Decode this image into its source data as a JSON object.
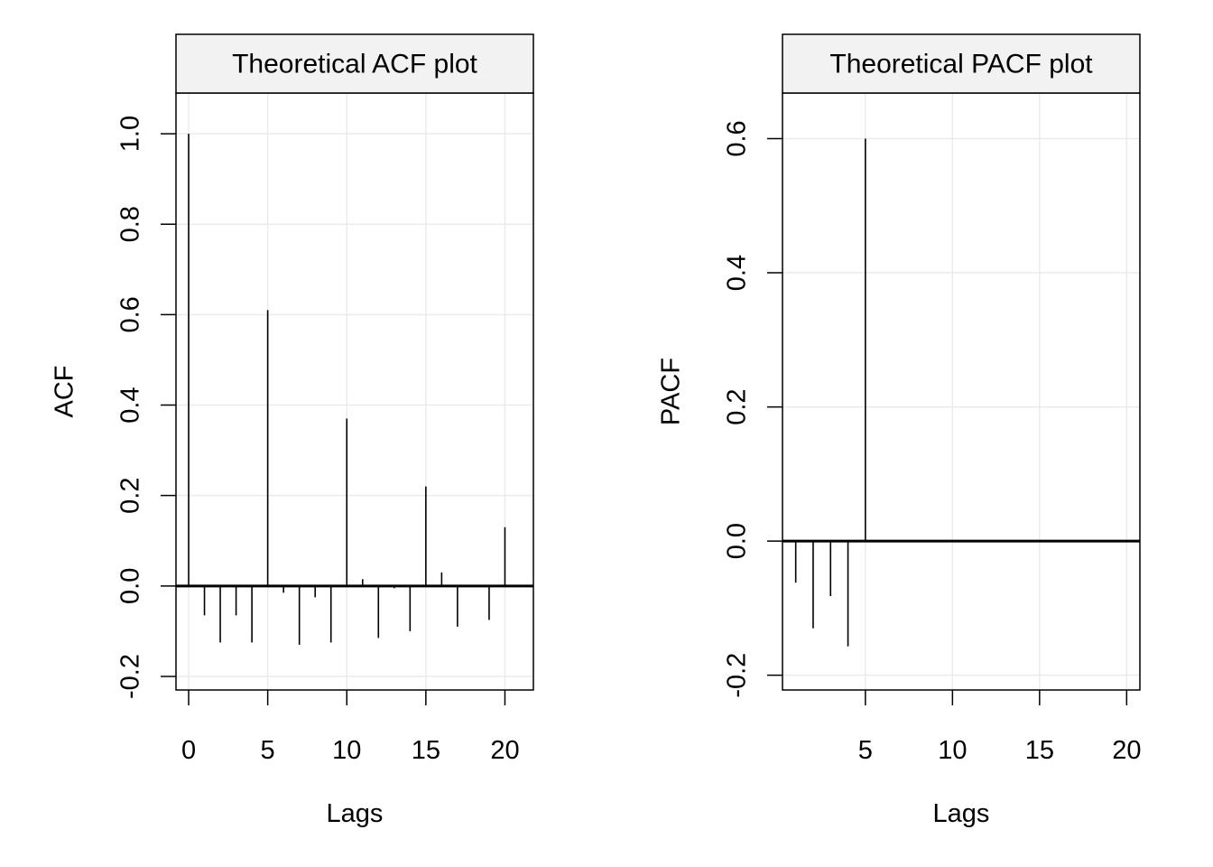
{
  "chart_data": [
    {
      "type": "bar",
      "title": "Theoretical ACF plot",
      "xlabel": "Lags",
      "ylabel": "ACF",
      "x": [
        0,
        1,
        2,
        3,
        4,
        5,
        6,
        7,
        8,
        9,
        10,
        11,
        12,
        13,
        14,
        15,
        16,
        17,
        18,
        19,
        20
      ],
      "values": [
        1.0,
        -0.065,
        -0.125,
        -0.065,
        -0.125,
        0.61,
        -0.015,
        -0.13,
        -0.025,
        -0.125,
        0.37,
        0.015,
        -0.115,
        -0.005,
        -0.1,
        0.22,
        0.03,
        -0.09,
        0.0,
        -0.075,
        0.13
      ],
      "xlim": [
        -0.8,
        21.8
      ],
      "ylim": [
        -0.23,
        1.09
      ],
      "xticks": [
        "0",
        "5",
        "10",
        "15",
        "20"
      ],
      "yticks": [
        "-0.2",
        "0.0",
        "0.2",
        "0.4",
        "0.6",
        "0.8",
        "1.0"
      ],
      "grid": true,
      "legend": "none"
    },
    {
      "type": "bar",
      "title": "Theoretical PACF plot",
      "xlabel": "Lags",
      "ylabel": "PACF",
      "x": [
        1,
        2,
        3,
        4,
        5,
        6,
        7,
        8,
        9,
        10,
        11,
        12,
        13,
        14,
        15,
        16,
        17,
        18,
        19,
        20
      ],
      "values": [
        -0.062,
        -0.13,
        -0.082,
        -0.157,
        0.6,
        0,
        0,
        0,
        0,
        0,
        0,
        0,
        0,
        0,
        0,
        0,
        0,
        0,
        0,
        0
      ],
      "xlim": [
        0.24,
        20.76
      ],
      "ylim": [
        -0.222,
        0.668
      ],
      "xticks": [
        "5",
        "10",
        "15",
        "20"
      ],
      "yticks": [
        "-0.2",
        "0.0",
        "0.2",
        "0.4",
        "0.6"
      ],
      "grid": true,
      "legend": "none"
    }
  ]
}
